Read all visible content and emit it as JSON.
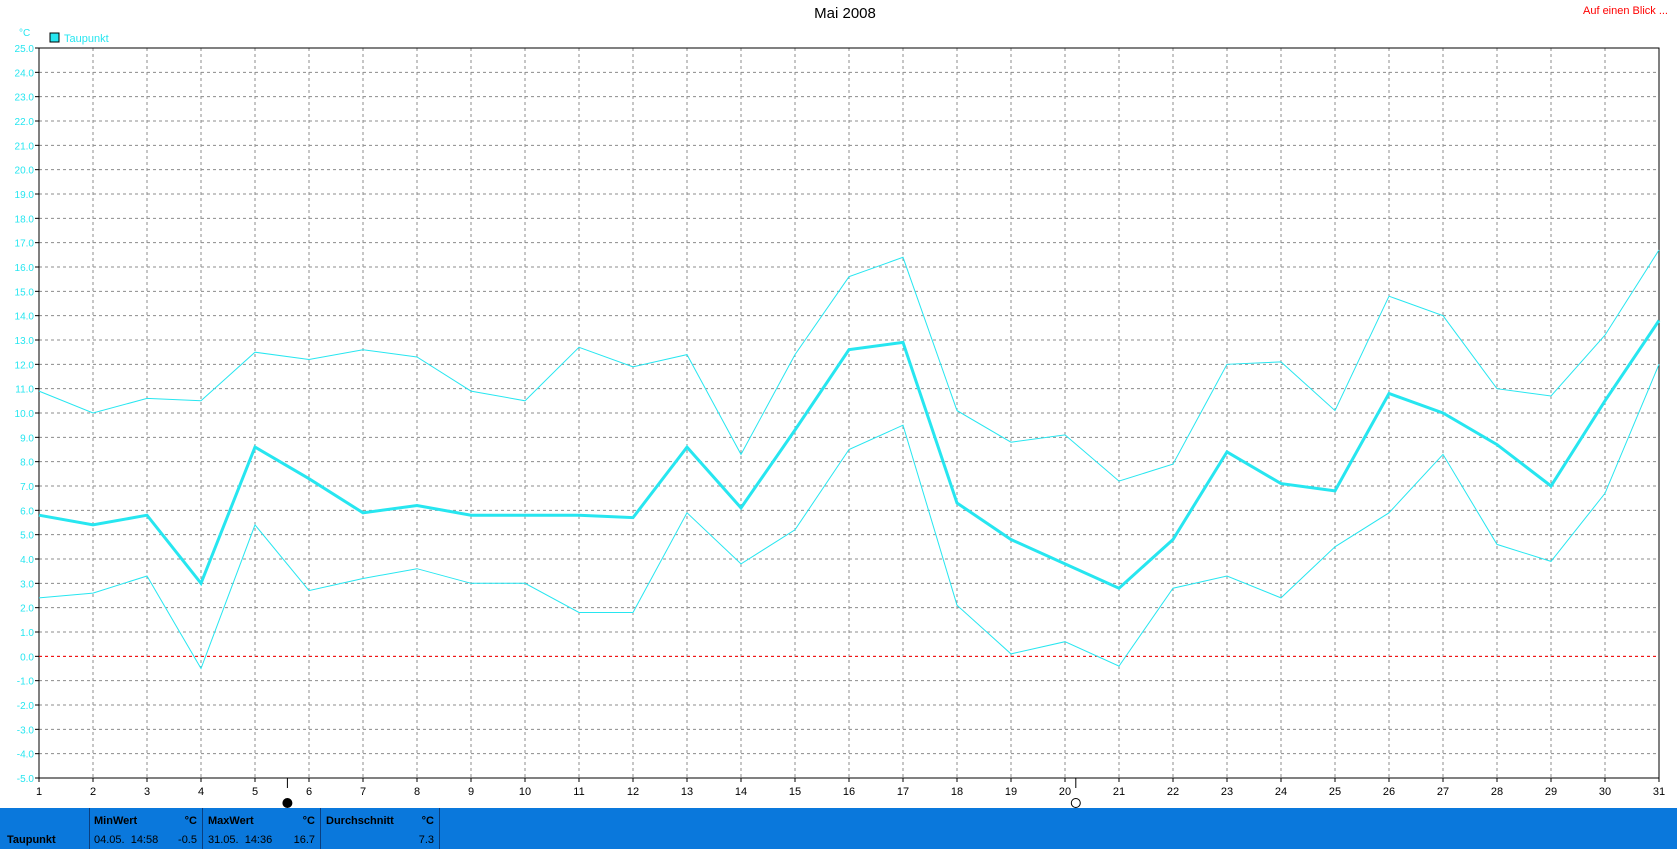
{
  "title": "Mai 2008",
  "top_link": "Auf einen Blick ...",
  "colors": {
    "series": "#27e6f0",
    "zero_line": "#ff0000",
    "grid": "#8c8c8c",
    "footer_bg": "#0a78dc"
  },
  "chart_data": {
    "type": "line",
    "title": "Mai 2008",
    "ylabel": "°C",
    "legend_label": "Taupunkt",
    "legend_position": "top-left",
    "grid": true,
    "ylim": [
      -5,
      25
    ],
    "xlim": [
      1,
      31
    ],
    "y_ticks": [
      "-5.0",
      "-4.0",
      "-3.0",
      "-2.0",
      "-1.0",
      "0.0",
      "1.0",
      "2.0",
      "3.0",
      "4.0",
      "5.0",
      "6.0",
      "7.0",
      "8.0",
      "9.0",
      "10.0",
      "11.0",
      "12.0",
      "13.0",
      "14.0",
      "15.0",
      "16.0",
      "17.0",
      "18.0",
      "19.0",
      "20.0",
      "21.0",
      "22.0",
      "23.0",
      "24.0",
      "25.0"
    ],
    "x": [
      1,
      2,
      3,
      4,
      5,
      6,
      7,
      8,
      9,
      10,
      11,
      12,
      13,
      14,
      15,
      16,
      17,
      18,
      19,
      20,
      21,
      22,
      23,
      24,
      25,
      26,
      27,
      28,
      29,
      30,
      31
    ],
    "series": [
      {
        "role": "max",
        "line_width": 1,
        "values": [
          10.9,
          10.0,
          10.6,
          10.5,
          12.5,
          12.2,
          12.6,
          12.3,
          10.9,
          10.5,
          12.7,
          11.9,
          12.4,
          8.3,
          12.4,
          15.6,
          16.4,
          10.1,
          8.8,
          9.1,
          7.2,
          7.9,
          12.0,
          12.1,
          10.1,
          14.8,
          14.0,
          11.0,
          10.7,
          13.2,
          16.7
        ]
      },
      {
        "role": "mean",
        "line_width": 3,
        "values": [
          5.8,
          5.4,
          5.8,
          3.0,
          8.6,
          7.3,
          5.9,
          6.2,
          5.8,
          5.8,
          5.8,
          5.7,
          8.6,
          6.1,
          9.3,
          12.6,
          12.9,
          6.3,
          4.8,
          3.8,
          2.8,
          4.8,
          8.4,
          7.1,
          6.8,
          10.8,
          10.0,
          8.7,
          7.0,
          10.5,
          13.8
        ]
      },
      {
        "role": "min",
        "line_width": 1,
        "values": [
          2.4,
          2.6,
          3.3,
          -0.5,
          5.4,
          2.7,
          3.2,
          3.6,
          3.0,
          3.0,
          1.8,
          1.8,
          5.9,
          3.8,
          5.2,
          8.5,
          9.5,
          2.1,
          0.1,
          0.6,
          -0.4,
          2.8,
          3.3,
          2.4,
          4.5,
          5.9,
          8.3,
          4.6,
          3.9,
          6.7,
          12.0
        ]
      }
    ],
    "reference_line": {
      "y": 0.0
    },
    "moon_markers": [
      {
        "day": 5.6,
        "icon": "new-moon-icon"
      },
      {
        "day": 20.2,
        "icon": "full-moon-icon"
      }
    ]
  },
  "footer": {
    "series_label": "Taupunkt",
    "min": {
      "header": "MinWert",
      "unit": "°C",
      "stamp": "04.05.  14:58",
      "value": "-0.5"
    },
    "max": {
      "header": "MaxWert",
      "unit": "°C",
      "stamp": "31.05.  14:36",
      "value": "16.7"
    },
    "avg": {
      "header": "Durchschnitt",
      "unit": "°C",
      "value": "7.3"
    }
  }
}
